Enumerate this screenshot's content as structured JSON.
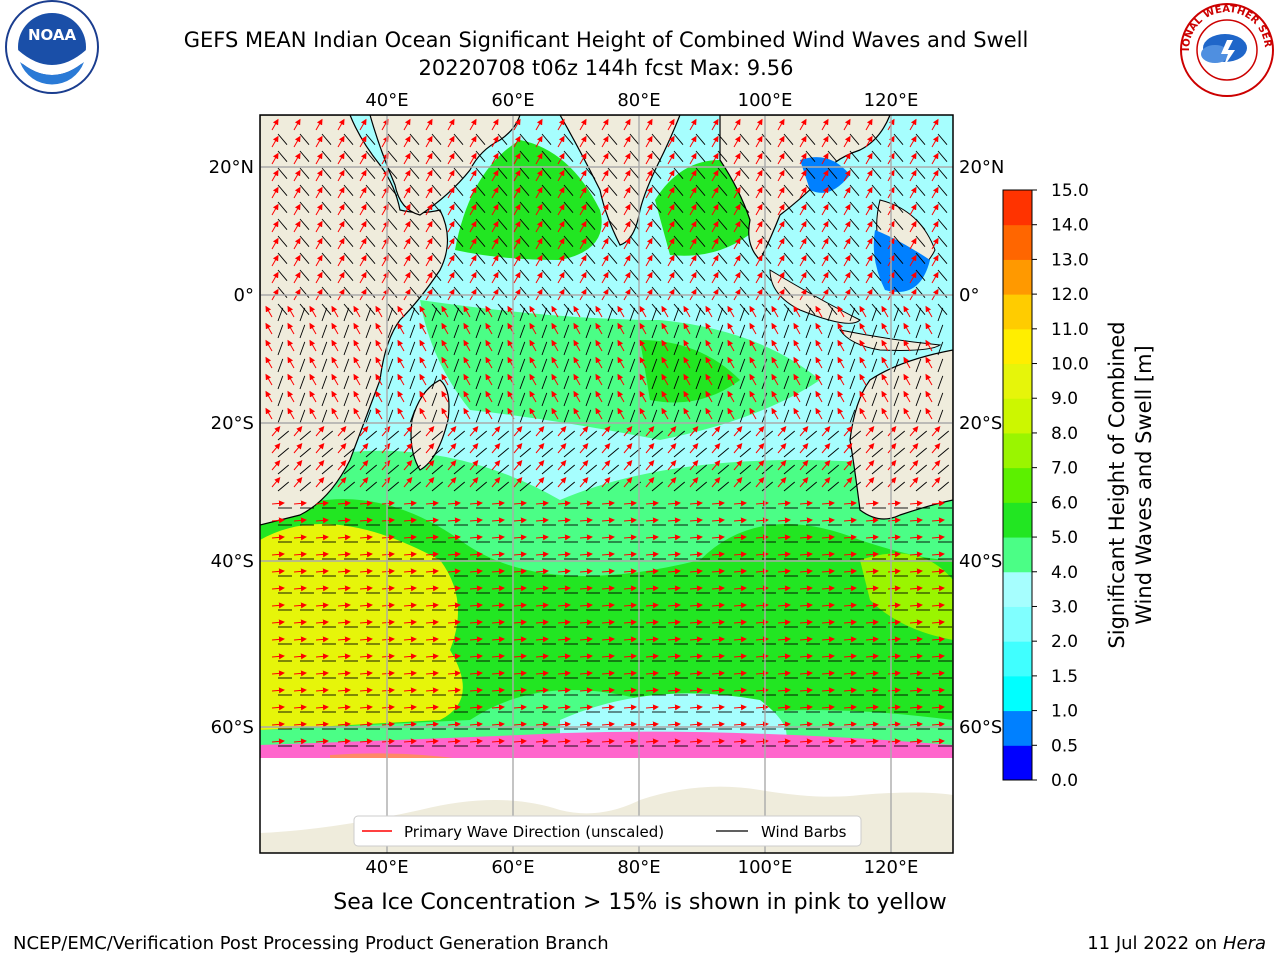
{
  "header": {
    "title_line1": "GEFS MEAN Indian Ocean Significant Height of Combined Wind Waves and Swell",
    "title_line2": "20220708 t06z 144h fcst   Max: 9.56"
  },
  "logos": {
    "left": {
      "icon": "noaa-logo-icon",
      "text": "NOAA"
    },
    "right": {
      "icon": "nws-logo-icon",
      "text": "NATIONAL WEATHER SERVICE"
    }
  },
  "map": {
    "lon_ticks": [
      "40°E",
      "60°E",
      "80°E",
      "100°E",
      "120°E"
    ],
    "lat_ticks": [
      "20°N",
      "0°",
      "20°S",
      "40°S",
      "60°S"
    ],
    "colors": {
      "land": "#efecdc",
      "ocean_low": "#a6fefe",
      "ocean_mid": "#4bfe86",
      "ocean_high": "#22e622",
      "ocean_yellow": "#e6f50a",
      "ice": "#ffffff",
      "wave_arrow": "#ff0000",
      "wind_barb": "#000000"
    }
  },
  "legend": {
    "wave_label": "Primary Wave Direction (unscaled)",
    "barb_label": "Wind Barbs"
  },
  "colorbar": {
    "label_line1": "Significant Height of Combined",
    "label_line2": "Wind Waves and Swell [m]",
    "ticks": [
      "0.0",
      "0.5",
      "1.0",
      "1.5",
      "2.0",
      "3.0",
      "4.0",
      "5.0",
      "6.0",
      "7.0",
      "8.0",
      "9.0",
      "10.0",
      "11.0",
      "12.0",
      "13.0",
      "14.0",
      "15.0"
    ],
    "colors": [
      "#0000ff",
      "#0080ff",
      "#00ffff",
      "#40ffff",
      "#80ffff",
      "#a6fefe",
      "#4bfe86",
      "#22e622",
      "#5cf000",
      "#9af500",
      "#ccf700",
      "#e6f50a",
      "#ffee00",
      "#ffcc00",
      "#ff9900",
      "#ff6600",
      "#ff3300",
      "#ff0000"
    ]
  },
  "footer": {
    "ice_note": "Sea Ice Concentration > 15% is shown in pink to yellow",
    "credit": "NCEP/EMC/Verification Post Processing Product Generation Branch",
    "date_prefix": "11 Jul 2022 on ",
    "date_machine": "Hera"
  }
}
